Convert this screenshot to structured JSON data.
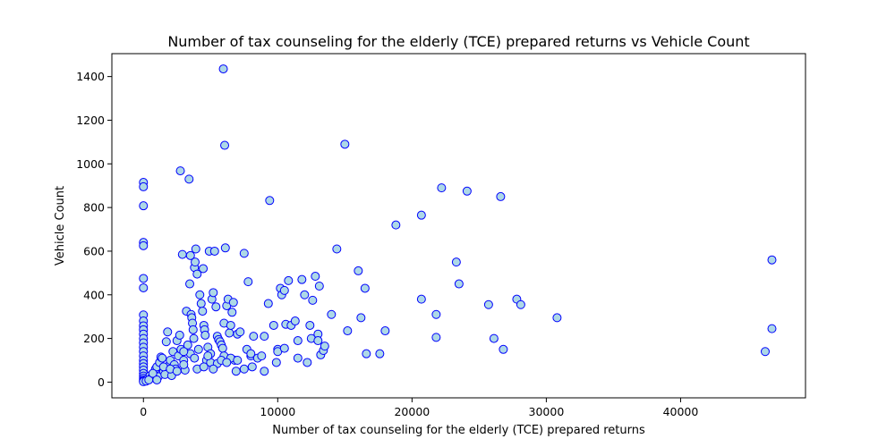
{
  "chart_data": {
    "type": "scatter",
    "title": "Number of tax counseling for the elderly (TCE) prepared returns vs Vehicle Count",
    "xlabel": "Number of tax counseling for the elderly (TCE) prepared returns",
    "ylabel": "Vehicle Count",
    "xlim": [
      -2350,
      49300
    ],
    "ylim": [
      -72,
      1505
    ],
    "xticks": [
      0,
      10000,
      20000,
      30000,
      40000
    ],
    "yticks": [
      0,
      200,
      400,
      600,
      800,
      1000,
      1200,
      1400
    ],
    "grid": false,
    "marker_face_color": "#add8e6",
    "marker_edge_color": "#0000ff",
    "points": [
      [
        0,
        915
      ],
      [
        0,
        895
      ],
      [
        0,
        808
      ],
      [
        0,
        640
      ],
      [
        0,
        625
      ],
      [
        0,
        475
      ],
      [
        0,
        432
      ],
      [
        0,
        308
      ],
      [
        0,
        280
      ],
      [
        0,
        258
      ],
      [
        0,
        240
      ],
      [
        0,
        220
      ],
      [
        0,
        200
      ],
      [
        0,
        180
      ],
      [
        0,
        160
      ],
      [
        0,
        140
      ],
      [
        0,
        120
      ],
      [
        0,
        100
      ],
      [
        0,
        85
      ],
      [
        0,
        70
      ],
      [
        0,
        55
      ],
      [
        0,
        40
      ],
      [
        0,
        28
      ],
      [
        0,
        18
      ],
      [
        0,
        10
      ],
      [
        0,
        5
      ],
      [
        0,
        2
      ],
      [
        300,
        15
      ],
      [
        500,
        30
      ],
      [
        600,
        20
      ],
      [
        800,
        45
      ],
      [
        900,
        60
      ],
      [
        1000,
        70
      ],
      [
        1100,
        25
      ],
      [
        1200,
        90
      ],
      [
        1300,
        115
      ],
      [
        1400,
        110
      ],
      [
        1500,
        50
      ],
      [
        1600,
        35
      ],
      [
        1700,
        185
      ],
      [
        1800,
        230
      ],
      [
        1900,
        75
      ],
      [
        2000,
        100
      ],
      [
        2100,
        30
      ],
      [
        2200,
        140
      ],
      [
        2300,
        80
      ],
      [
        2400,
        60
      ],
      [
        2500,
        190
      ],
      [
        2600,
        120
      ],
      [
        2700,
        215
      ],
      [
        2750,
        968
      ],
      [
        2800,
        150
      ],
      [
        2900,
        585
      ],
      [
        3000,
        100
      ],
      [
        3100,
        55
      ],
      [
        3200,
        325
      ],
      [
        3300,
        170
      ],
      [
        3400,
        930
      ],
      [
        3450,
        450
      ],
      [
        3500,
        580
      ],
      [
        3550,
        310
      ],
      [
        3600,
        295
      ],
      [
        3650,
        270
      ],
      [
        3700,
        240
      ],
      [
        3750,
        200
      ],
      [
        3800,
        525
      ],
      [
        3850,
        550
      ],
      [
        3900,
        610
      ],
      [
        4000,
        495
      ],
      [
        4100,
        150
      ],
      [
        4200,
        400
      ],
      [
        4300,
        360
      ],
      [
        4400,
        325
      ],
      [
        4450,
        520
      ],
      [
        4500,
        260
      ],
      [
        4550,
        240
      ],
      [
        4600,
        215
      ],
      [
        4700,
        100
      ],
      [
        4800,
        160
      ],
      [
        4900,
        600
      ],
      [
        5000,
        130
      ],
      [
        5100,
        380
      ],
      [
        5200,
        410
      ],
      [
        5300,
        600
      ],
      [
        5400,
        345
      ],
      [
        5500,
        210
      ],
      [
        5600,
        195
      ],
      [
        5700,
        185
      ],
      [
        5800,
        170
      ],
      [
        5900,
        155
      ],
      [
        5950,
        1435
      ],
      [
        6000,
        270
      ],
      [
        6050,
        1085
      ],
      [
        6100,
        615
      ],
      [
        6200,
        350
      ],
      [
        6300,
        380
      ],
      [
        6400,
        225
      ],
      [
        6500,
        260
      ],
      [
        6600,
        320
      ],
      [
        6700,
        365
      ],
      [
        6800,
        100
      ],
      [
        7000,
        220
      ],
      [
        7200,
        230
      ],
      [
        7500,
        590
      ],
      [
        7700,
        150
      ],
      [
        7800,
        460
      ],
      [
        8000,
        120
      ],
      [
        8200,
        210
      ],
      [
        8500,
        110
      ],
      [
        8800,
        120
      ],
      [
        9000,
        210
      ],
      [
        9300,
        360
      ],
      [
        9400,
        832
      ],
      [
        9700,
        260
      ],
      [
        9900,
        90
      ],
      [
        10000,
        150
      ],
      [
        10200,
        430
      ],
      [
        10300,
        400
      ],
      [
        10500,
        420
      ],
      [
        10600,
        265
      ],
      [
        10800,
        465
      ],
      [
        11000,
        260
      ],
      [
        11300,
        280
      ],
      [
        11500,
        190
      ],
      [
        11800,
        470
      ],
      [
        12000,
        400
      ],
      [
        12200,
        90
      ],
      [
        12400,
        260
      ],
      [
        12600,
        375
      ],
      [
        12800,
        485
      ],
      [
        13000,
        220
      ],
      [
        13100,
        440
      ],
      [
        13200,
        125
      ],
      [
        13400,
        145
      ],
      [
        13500,
        165
      ],
      [
        14000,
        310
      ],
      [
        14400,
        610
      ],
      [
        15000,
        1090
      ],
      [
        15200,
        235
      ],
      [
        16000,
        510
      ],
      [
        16200,
        295
      ],
      [
        16500,
        430
      ],
      [
        16600,
        130
      ],
      [
        17600,
        130
      ],
      [
        18000,
        235
      ],
      [
        18800,
        720
      ],
      [
        20700,
        765
      ],
      [
        20700,
        380
      ],
      [
        21800,
        310
      ],
      [
        21800,
        205
      ],
      [
        22200,
        890
      ],
      [
        23300,
        550
      ],
      [
        23500,
        450
      ],
      [
        24100,
        875
      ],
      [
        25700,
        355
      ],
      [
        26100,
        200
      ],
      [
        26600,
        850
      ],
      [
        26800,
        150
      ],
      [
        27800,
        380
      ],
      [
        28100,
        355
      ],
      [
        30800,
        295
      ],
      [
        46300,
        140
      ],
      [
        46800,
        560
      ],
      [
        46800,
        245
      ],
      [
        200,
        5
      ],
      [
        400,
        10
      ],
      [
        700,
        40
      ],
      [
        1000,
        10
      ],
      [
        1500,
        70
      ],
      [
        2000,
        60
      ],
      [
        2500,
        50
      ],
      [
        3000,
        80
      ],
      [
        3500,
        130
      ],
      [
        4000,
        60
      ],
      [
        4500,
        70
      ],
      [
        5000,
        90
      ],
      [
        5500,
        85
      ],
      [
        6000,
        120
      ],
      [
        6500,
        110
      ],
      [
        7000,
        100
      ],
      [
        7500,
        60
      ],
      [
        8000,
        130
      ],
      [
        9000,
        50
      ],
      [
        10000,
        140
      ],
      [
        10500,
        155
      ],
      [
        11500,
        110
      ],
      [
        12500,
        200
      ],
      [
        13000,
        190
      ],
      [
        3000,
        140
      ],
      [
        3800,
        110
      ],
      [
        4800,
        120
      ],
      [
        5200,
        60
      ],
      [
        5800,
        100
      ],
      [
        6200,
        90
      ],
      [
        6900,
        50
      ],
      [
        8100,
        70
      ]
    ]
  }
}
